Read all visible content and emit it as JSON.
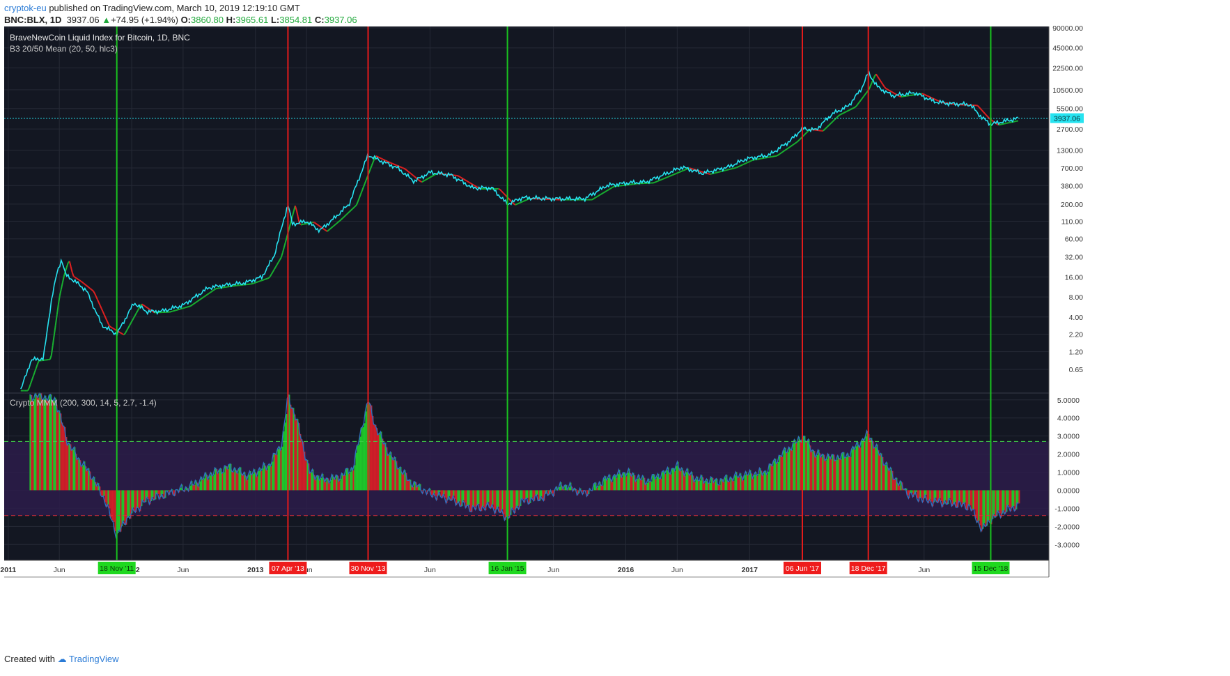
{
  "header": {
    "author": "cryptok-eu",
    "published": "published on TradingView.com, March 10, 2019 12:19:10 GMT",
    "symbol": "BNC:BLX, 1D",
    "last": "3937.06",
    "change": "+74.95 (+1.94%)",
    "o_label": "O:",
    "o": "3860.80",
    "h_label": "H:",
    "h": "3965.61",
    "l_label": "L:",
    "l": "3854.81",
    "c_label": "C:",
    "c": "3937.06"
  },
  "footer": {
    "created_with": "Created with",
    "brand": "TradingView"
  },
  "colors": {
    "background": "#131722",
    "price": "#26e3f0",
    "ma_red": "#e02020",
    "ma_green": "#18b030",
    "osc_red": "#d01e28",
    "osc_green": "#1ec82a",
    "osc_line": "#2f6fbd",
    "band": "#2d1c4a",
    "up_level": "#3fce46",
    "down_level": "#e0303a"
  },
  "chart_data": [
    {
      "type": "line",
      "title": "BraveNewCoin Liquid Index for Bitcoin, 1D, BNC",
      "subtitle": "B3 20/50 Mean (20, 50, hlc3)",
      "scale": "log",
      "ylim": [
        0.3,
        90000
      ],
      "y_ticks": [
        "90000.00",
        "45000.00",
        "22500.00",
        "10500.00",
        "5500.00",
        "2700.00",
        "1300.00",
        "700.00",
        "380.00",
        "200.00",
        "110.00",
        "60.00",
        "32.00",
        "16.00",
        "8.00",
        "4.00",
        "2.20",
        "1.20",
        "0.65"
      ],
      "x_ticks": [
        "2011",
        "Jun",
        "18 Nov '11",
        "2012",
        "Jun",
        "2013",
        "07 Apr '13",
        "Jun",
        "30 Nov '13",
        "Jun",
        "16 Jan '15",
        "Jun",
        "2016",
        "Jun",
        "2017",
        "06 Jun '17",
        "18 Dec '17",
        "Jun",
        "15 Dec '18"
      ],
      "last_price": "3937.06",
      "series": [
        {
          "x": [
            "2011-02-07",
            "2011-03-10",
            "2011-04-15",
            "2011-05-10",
            "2011-05-25",
            "2011-06-08",
            "2011-06-20",
            "2011-07-15",
            "2011-08-20",
            "2011-10-05",
            "2011-11-18",
            "2012-01-08",
            "2012-02-15",
            "2012-04-01",
            "2012-06-01",
            "2012-08-15",
            "2012-10-01",
            "2012-11-30",
            "2013-01-20",
            "2013-02-25",
            "2013-03-20",
            "2013-04-07",
            "2013-04-20",
            "2013-06-01",
            "2013-07-10",
            "2013-08-20",
            "2013-10-05",
            "2013-11-15",
            "2013-11-30",
            "2014-01-05",
            "2014-02-25",
            "2014-04-15",
            "2014-06-01",
            "2014-08-01",
            "2014-10-05",
            "2014-12-01",
            "2015-01-16",
            "2015-03-01",
            "2015-06-01",
            "2015-09-01",
            "2015-11-05",
            "2016-01-15",
            "2016-03-01",
            "2016-06-15",
            "2016-08-15",
            "2016-11-01",
            "2016-12-20",
            "2017-03-01",
            "2017-05-01",
            "2017-06-06",
            "2017-07-15",
            "2017-09-01",
            "2017-10-20",
            "2017-11-28",
            "2017-12-18",
            "2018-01-15",
            "2018-03-01",
            "2018-05-05",
            "2018-07-01",
            "2018-08-15",
            "2018-10-15",
            "2018-11-19",
            "2018-12-15",
            "2019-01-20",
            "2019-03-10"
          ],
          "values": [
            0.32,
            0.9,
            0.95,
            8,
            18,
            30,
            17,
            14,
            10,
            3,
            2.2,
            6.5,
            4.8,
            4.9,
            6,
            11,
            12,
            13,
            16,
            33,
            90,
            200,
            100,
            110,
            80,
            120,
            200,
            700,
            1100,
            900,
            700,
            440,
            600,
            550,
            350,
            350,
            200,
            250,
            240,
            240,
            380,
            420,
            430,
            720,
            580,
            730,
            950,
            1100,
            1800,
            2750,
            2600,
            4500,
            6000,
            11000,
            19000,
            11500,
            8500,
            9500,
            7000,
            6500,
            6300,
            4000,
            3200,
            3500,
            3937.06
          ]
        }
      ]
    },
    {
      "type": "area",
      "title": "Crypto MMM (200, 300, 14, 5, 2.7, -1.4)",
      "ylim": [
        -3.8,
        5.3
      ],
      "y_ticks": [
        "5.0000",
        "4.0000",
        "3.0000",
        "2.0000",
        "1.0000",
        "0.0000",
        "-1.0000",
        "-2.0000",
        "-3.0000"
      ],
      "levels": [
        2.7,
        -1.4
      ],
      "series": [
        {
          "x": [
            "2011-03-05",
            "2011-04-10",
            "2011-05-20",
            "2011-06-25",
            "2011-07-25",
            "2011-09-05",
            "2011-10-15",
            "2011-11-18",
            "2011-12-20",
            "2012-02-10",
            "2012-04-15",
            "2012-06-20",
            "2012-08-20",
            "2012-10-15",
            "2012-12-10",
            "2013-02-10",
            "2013-03-20",
            "2013-04-07",
            "2013-05-01",
            "2013-06-10",
            "2013-07-20",
            "2013-09-01",
            "2013-10-15",
            "2013-11-30",
            "2013-12-20",
            "2014-02-01",
            "2014-04-01",
            "2014-06-01",
            "2014-08-01",
            "2014-10-01",
            "2014-12-01",
            "2015-01-16",
            "2015-03-01",
            "2015-05-01",
            "2015-07-01",
            "2015-09-01",
            "2015-11-01",
            "2016-01-01",
            "2016-03-01",
            "2016-06-01",
            "2016-08-01",
            "2016-10-01",
            "2016-12-01",
            "2017-02-15",
            "2017-04-01",
            "2017-05-15",
            "2017-06-06",
            "2017-07-15",
            "2017-09-01",
            "2017-10-15",
            "2017-12-18",
            "2018-01-20",
            "2018-03-01",
            "2018-04-15",
            "2018-06-15",
            "2018-08-15",
            "2018-10-15",
            "2018-11-20",
            "2018-12-15",
            "2019-01-20",
            "2019-03-10"
          ],
          "values": [
            5.2,
            5.2,
            5.0,
            2.7,
            1.8,
            0.8,
            -0.6,
            -2.5,
            -1.5,
            -0.6,
            -0.2,
            0.2,
            0.9,
            1.3,
            0.8,
            1.4,
            2.6,
            5.2,
            4.0,
            1.0,
            0.6,
            0.7,
            1.2,
            5.0,
            3.6,
            2.0,
            0.5,
            -0.2,
            -0.5,
            -1.0,
            -0.9,
            -1.5,
            -0.6,
            -0.4,
            0.3,
            -0.2,
            0.6,
            1.0,
            0.5,
            1.3,
            0.6,
            0.5,
            0.8,
            1.0,
            1.9,
            2.6,
            3.0,
            2.0,
            1.8,
            1.9,
            3.1,
            2.0,
            0.8,
            -0.2,
            -0.6,
            -0.7,
            -0.9,
            -2.2,
            -1.6,
            -1.2,
            -0.8
          ]
        }
      ]
    }
  ],
  "signals": [
    {
      "date": "2011-11-18",
      "label": "18 Nov '11",
      "kind": "buy"
    },
    {
      "date": "2013-04-07",
      "label": "07 Apr '13",
      "kind": "sell"
    },
    {
      "date": "2013-11-30",
      "label": "30 Nov '13",
      "kind": "sell"
    },
    {
      "date": "2015-01-16",
      "label": "16 Jan '15",
      "kind": "buy"
    },
    {
      "date": "2017-06-06",
      "label": "06 Jun '17",
      "kind": "sell"
    },
    {
      "date": "2017-12-18",
      "label": "18 Dec '17",
      "kind": "sell"
    },
    {
      "date": "2018-12-15",
      "label": "15 Dec '18",
      "kind": "buy"
    }
  ],
  "axis_labels": [
    {
      "date": "2011-01-01",
      "label": "2011"
    },
    {
      "date": "2011-06-01",
      "label": "Jun"
    },
    {
      "date": "2012-01-01",
      "label": "2012"
    },
    {
      "date": "2012-06-01",
      "label": "Jun"
    },
    {
      "date": "2013-01-01",
      "label": "2013"
    },
    {
      "date": "2013-06-01",
      "label": "Jun"
    },
    {
      "date": "2014-06-01",
      "label": "Jun"
    },
    {
      "date": "2015-06-01",
      "label": "Jun"
    },
    {
      "date": "2016-01-01",
      "label": "2016"
    },
    {
      "date": "2016-06-01",
      "label": "Jun"
    },
    {
      "date": "2017-01-01",
      "label": "2017"
    },
    {
      "date": "2018-06-01",
      "label": "Jun"
    }
  ]
}
